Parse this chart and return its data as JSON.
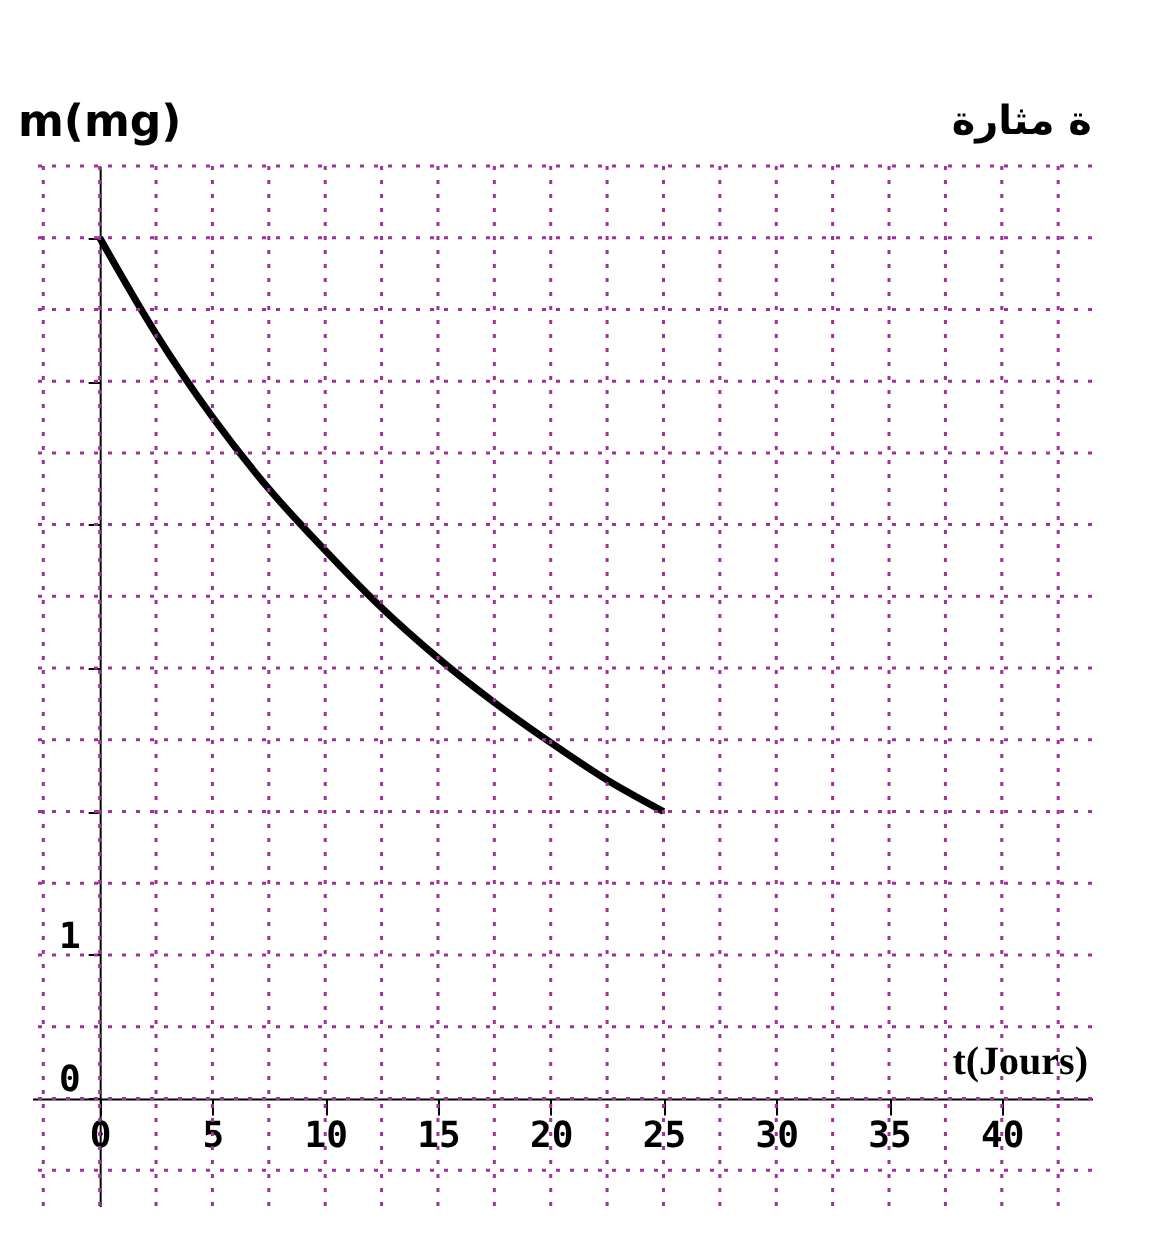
{
  "chart_data": {
    "type": "line",
    "ylabel": "m(mg)",
    "xlabel": "t(Jours)",
    "annotations": [
      "ة مثارة"
    ],
    "x": [
      0,
      2.5,
      5,
      7.5,
      10,
      12.5,
      15,
      17.5,
      20,
      22.5,
      25
    ],
    "series": [
      {
        "color": "#000000",
        "values": [
          6.0,
          5.33,
          4.75,
          4.25,
          3.82,
          3.42,
          3.07,
          2.76,
          2.48,
          2.22,
          2.0
        ]
      }
    ],
    "xlim": [
      -3,
      44
    ],
    "ylim": [
      -0.75,
      6.5
    ],
    "xticks": [
      0,
      5,
      10,
      15,
      20,
      25,
      30,
      35,
      40
    ],
    "yticks": [
      0,
      1,
      {
        "value": 2,
        "label": null
      },
      {
        "value": 3,
        "label": null
      },
      {
        "value": 4,
        "label": null
      },
      {
        "value": 5,
        "label": null
      },
      {
        "value": 6,
        "label": null
      }
    ],
    "grid": true,
    "marker": "none",
    "line_style": "solid"
  }
}
